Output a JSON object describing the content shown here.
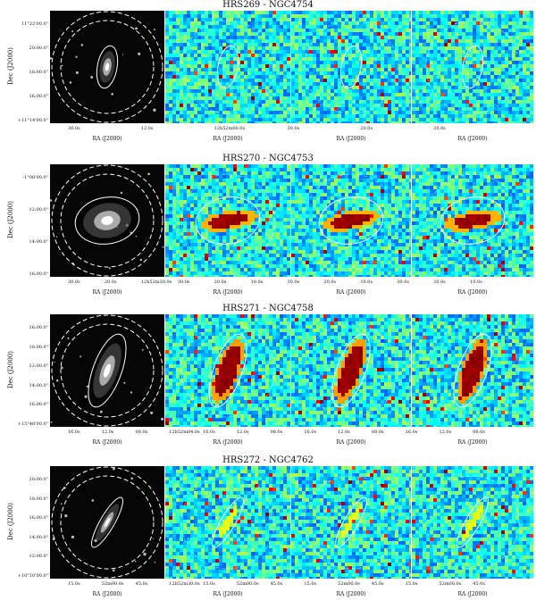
{
  "figure": {
    "rows": [
      {
        "title": "HRS269 - NGC4754",
        "ylabel": "Dec (J2000)",
        "yticks": [
          "11°22'00.0\"",
          "20:00.0\"",
          "18:00.0\"",
          "16:00.0\"",
          "+11°14'00.0\""
        ],
        "xticks": [
          "30.0s",
          "12.0s",
          "12h52m00.0s",
          "30.0s",
          "20.0s",
          "20.0s"
        ],
        "xlabels": [
          "RA (J2000)",
          "RA (J2000)",
          "RA (J2000)",
          "RA (J2000)"
        ],
        "map_style": "noise",
        "ellipse": {
          "rx": 11,
          "ry": 24,
          "rot": 10
        }
      },
      {
        "title": "HRS270 - NGC4753",
        "ylabel": "Dec (J2000)",
        "yticks": [
          "-1°08'00.0\"",
          "12:00.0\"",
          "14:00.0\"",
          "16:00.0\""
        ],
        "xticks": [
          "30.0s",
          "20.0s",
          "12h52m30.0s",
          "30.0s",
          "20.0s",
          "10.0s",
          "30.0s",
          "20.0s",
          "10.0s",
          "30.0s",
          "20.0s",
          "10.0s"
        ],
        "xlabels": [
          "RA (J2000)",
          "RA (J2000)",
          "RA (J2000)",
          "RA (J2000)"
        ],
        "map_style": "bright",
        "ellipse": {
          "rx": 36,
          "ry": 26,
          "rot": -10
        }
      },
      {
        "title": "HRS271 - NGC4758",
        "ylabel": "Dec (J2000)",
        "yticks": [
          "16:00.0\"",
          "18:00.0\"",
          "12:00.0\"",
          "14:00.0\"",
          "16:00.0\"",
          "+15°48'00.0\""
        ],
        "xticks": [
          "16.0s",
          "12.0s",
          "08.0s",
          "12h52m04.0s",
          "16.0s",
          "12.0s",
          "08.0s",
          "16.0s",
          "12.0s",
          "08.0s",
          "16.0s",
          "12.0s",
          "08.0s"
        ],
        "xlabels": [
          "RA (J2000)",
          "RA (J2000)",
          "RA (J2000)",
          "RA (J2000)"
        ],
        "map_style": "elongated",
        "ellipse": {
          "rx": 16,
          "ry": 43,
          "rot": 20
        }
      },
      {
        "title": "HRS272 - NGC4762",
        "ylabel": "Dec (J2000)",
        "yticks": [
          "20:00.0\"",
          "18:00.0\"",
          "16:00.0\"",
          "14:00.0\"",
          "12:00.0\"",
          "+10°10'00.0\""
        ],
        "xticks": [
          "15.0s",
          "52m00.0s",
          "45.0s",
          "12h52m30.0s",
          "15.0s",
          "52m00.0s",
          "45.0s",
          "15.0s",
          "52m00.0s",
          "45.0s",
          "15.0s",
          "52m00.0s",
          "45.0s"
        ],
        "xlabels": [
          "RA (J2000)",
          "RA (J2000)",
          "RA (J2000)",
          "RA (J2000)"
        ],
        "map_style": "edgeon",
        "ellipse": {
          "rx": 8,
          "ry": 32,
          "rot": 30
        }
      }
    ]
  }
}
